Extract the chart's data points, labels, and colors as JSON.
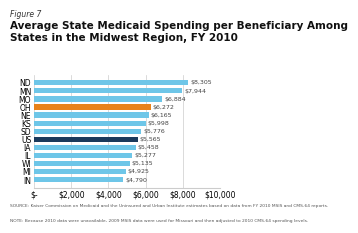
{
  "title_line1": "Figure 7",
  "title_line2": "Average State Medicaid Spending per Beneficiary Among\nStates in the Midwest Region, FY 2010",
  "states": [
    "IN",
    "MI",
    "WI",
    "IL",
    "IA",
    "US",
    "SD",
    "KS",
    "NE",
    "OH",
    "MO",
    "MN",
    "ND"
  ],
  "values": [
    4790,
    4925,
    5135,
    5277,
    5458,
    5565,
    5776,
    5998,
    6165,
    6272,
    6884,
    7944,
    8305
  ],
  "labels": [
    "$4,790",
    "$4,925",
    "$5,135",
    "$5,277",
    "$5,458",
    "$5,565",
    "$5,776",
    "$5,998",
    "$6,165",
    "$6,272",
    "$6,884",
    "$7,944",
    "$8,305"
  ],
  "bar_colors": [
    "#6ec6e8",
    "#6ec6e8",
    "#6ec6e8",
    "#6ec6e8",
    "#6ec6e8",
    "#1a3a5c",
    "#6ec6e8",
    "#6ec6e8",
    "#6ec6e8",
    "#e8821a",
    "#6ec6e8",
    "#6ec6e8",
    "#6ec6e8"
  ],
  "xlim": [
    0,
    10000
  ],
  "xticks": [
    0,
    2000,
    4000,
    6000,
    8000,
    10000
  ],
  "xticklabels": [
    "$-",
    "$2,000",
    "$4,000",
    "$6,000",
    "$8,000",
    "$10,000"
  ],
  "source_text": "SOURCE: Kaiser Commission on Medicaid and the Uninsured and Urban Institute estimates based on data from FY 2010 MSIS and CMS-64 reports.",
  "note_text": "NOTE: Because 2010 data were unavailable, 2009 MSIS data were used for Missouri and then adjusted to 2010 CMS-64 spending levels.",
  "grid_color": "#cccccc",
  "background_color": "#ffffff",
  "bar_height": 0.65,
  "label_fontsize": 4.5,
  "tick_fontsize": 5.5,
  "title_fontsize1": 5.5,
  "title_fontsize2": 7.5,
  "source_fontsize": 3.2
}
